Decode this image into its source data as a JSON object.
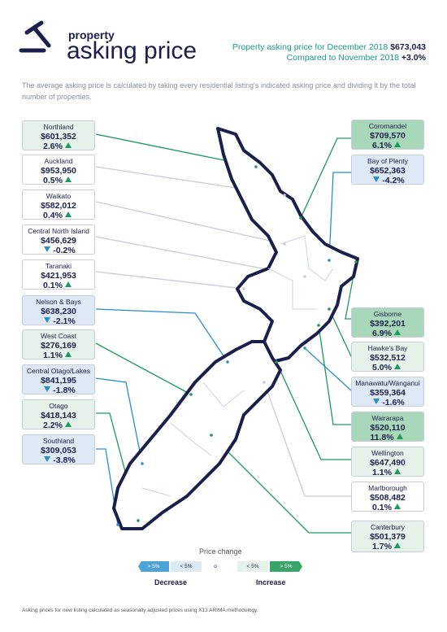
{
  "header": {
    "brand_small": "property",
    "brand_large": "asking price",
    "summary_line1": "Property asking price for December 2018",
    "summary_value1": "$673,043",
    "summary_line2": "Compared to November 2018",
    "summary_value2": "+3.0%"
  },
  "intro": "The average asking price is calculated by taking every residential listing's indicated asking price and dividing it by the total number of properties.",
  "regions": [
    {
      "name": "Northland",
      "price": "$601,352",
      "change": "2.6%",
      "color": "#e5f2e9",
      "line": "#1a9a5c"
    },
    {
      "name": "Auckland",
      "price": "$953,950",
      "change": "0.5%",
      "color": "#ffffff",
      "line": "#c9ccd6"
    },
    {
      "name": "Waikato",
      "price": "$582,012",
      "change": "0.4%",
      "color": "#ffffff",
      "line": "#c9ccd6"
    },
    {
      "name": "Central North Island",
      "price": "$456,629",
      "change": "-0.2%",
      "color": "#ffffff",
      "line": "#c9ccd6"
    },
    {
      "name": "Taranaki",
      "price": "$421,953",
      "change": "0.1%",
      "color": "#ffffff",
      "line": "#c9ccd6"
    },
    {
      "name": "Nelson & Bays",
      "price": "$638,230",
      "change": "-2.1%",
      "color": "#dde9f4",
      "line": "#2a8fc9"
    },
    {
      "name": "West Coast",
      "price": "$276,169",
      "change": "1.1%",
      "color": "#e5f2e9",
      "line": "#1a9a5c"
    },
    {
      "name": "Central Otago/Lakes",
      "price": "$841,195",
      "change": "-1.8%",
      "color": "#dde9f4",
      "line": "#2a8fc9"
    },
    {
      "name": "Otago",
      "price": "$418,143",
      "change": "2.2%",
      "color": "#e5f2e9",
      "line": "#1a9a5c"
    },
    {
      "name": "Southland",
      "price": "$309,053",
      "change": "-3.8%",
      "color": "#dde9f4",
      "line": "#2a8fc9"
    },
    {
      "name": "Coromandel",
      "price": "$709,570",
      "change": "6.1%",
      "color": "#a8d8b9",
      "line": "#1a9a5c"
    },
    {
      "name": "Bay of Plenty",
      "price": "$652,363",
      "change": "-4.2%",
      "color": "#dde9f4",
      "line": "#2a8fc9"
    },
    {
      "name": "Gisborne",
      "price": "$392,201",
      "change": "6.9%",
      "color": "#a8d8b9",
      "line": "#1a9a5c"
    },
    {
      "name": "Hawke's Bay",
      "price": "$532,512",
      "change": "5.0%",
      "color": "#e5f2e9",
      "line": "#1a9a5c"
    },
    {
      "name": "Manawatu/Wanganui",
      "price": "$359,364",
      "change": "-1.6%",
      "color": "#dde9f4",
      "line": "#2a8fc9"
    },
    {
      "name": "Wairarapa",
      "price": "$520,110",
      "change": "11.8%",
      "color": "#a8d8b9",
      "line": "#1a9a5c"
    },
    {
      "name": "Wellington",
      "price": "$647,490",
      "change": "1.1%",
      "color": "#e5f2e9",
      "line": "#1a9a5c"
    },
    {
      "name": "Marlborough",
      "price": "$508,482",
      "change": "0.1%",
      "color": "#ffffff",
      "line": "#c9ccd6"
    },
    {
      "name": "Canterbury",
      "price": "$501,379",
      "change": "1.7%",
      "color": "#e5f2e9",
      "line": "#1a9a5c"
    }
  ],
  "legend": {
    "title": "Price change",
    "decrease_labels": [
      "> 5%",
      "< 5%"
    ],
    "neutral": "o",
    "increase_labels": [
      "< 5%",
      "> 5%"
    ],
    "decrease": "Decrease",
    "increase": "Increase"
  },
  "footnote": "Asking prices for new listing calculated as seasonally adjusted prices using X13 ARIMA methodology."
}
